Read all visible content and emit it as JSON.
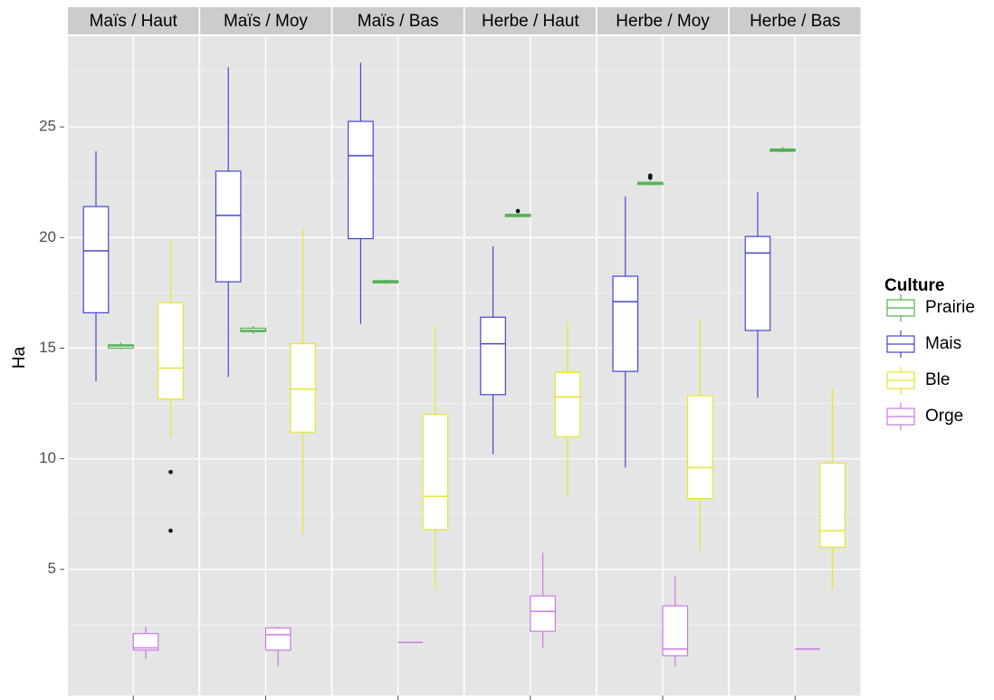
{
  "chart_data": {
    "type": "boxplot",
    "ylabel": "Ha",
    "ylim": [
      -0.7,
      29.1
    ],
    "yticks": [
      5,
      10,
      15,
      20,
      25
    ],
    "yminor": [
      2.5,
      7.5,
      12.5,
      17.5,
      22.5,
      27.5
    ],
    "grid": true,
    "legend_title": "Culture",
    "legend": "right",
    "series": [
      {
        "name": "Prairie",
        "color": "#52b152"
      },
      {
        "name": "Mais",
        "color": "#4646d0"
      },
      {
        "name": "Ble",
        "color": "#e6e62e"
      },
      {
        "name": "Orge",
        "color": "#c97ae0"
      }
    ],
    "facets": [
      {
        "title": "Maïs / Haut",
        "boxes": [
          {
            "min": 14.95,
            "q1": 15.0,
            "median": 15.1,
            "q3": 15.15,
            "max": 15.25,
            "outliers": []
          },
          {
            "min": 13.5,
            "q1": 16.6,
            "median": 19.4,
            "q3": 21.4,
            "max": 23.9,
            "outliers": []
          },
          {
            "min": 11.0,
            "q1": 12.7,
            "median": 14.1,
            "q3": 17.05,
            "max": 19.9,
            "outliers": [
              9.4,
              6.75
            ]
          },
          {
            "min": 0.95,
            "q1": 1.35,
            "median": 1.45,
            "q3": 2.1,
            "max": 2.4,
            "outliers": []
          }
        ]
      },
      {
        "title": "Maïs / Moy",
        "boxes": [
          {
            "min": 15.65,
            "q1": 15.75,
            "median": 15.8,
            "q3": 15.9,
            "max": 16.0,
            "outliers": []
          },
          {
            "min": 13.7,
            "q1": 18.0,
            "median": 21.0,
            "q3": 23.0,
            "max": 27.7,
            "outliers": []
          },
          {
            "min": 6.6,
            "q1": 11.2,
            "median": 13.15,
            "q3": 15.2,
            "max": 20.4,
            "outliers": []
          },
          {
            "min": 0.6,
            "q1": 1.35,
            "median": 2.05,
            "q3": 2.35,
            "max": 2.4,
            "outliers": []
          }
        ]
      },
      {
        "title": "Maïs / Bas",
        "boxes": [
          {
            "min": 17.9,
            "q1": 17.95,
            "median": 18.0,
            "q3": 18.05,
            "max": 18.1,
            "outliers": []
          },
          {
            "min": 16.1,
            "q1": 19.95,
            "median": 23.7,
            "q3": 25.25,
            "max": 27.9,
            "outliers": []
          },
          {
            "min": 4.1,
            "q1": 6.8,
            "median": 8.3,
            "q3": 12.0,
            "max": 16.0,
            "outliers": []
          },
          {
            "min": 1.7,
            "q1": 1.7,
            "median": 1.7,
            "q3": 1.7,
            "max": 1.7,
            "outliers": []
          }
        ]
      },
      {
        "title": "Herbe / Haut",
        "boxes": [
          {
            "min": 20.9,
            "q1": 20.95,
            "median": 21.0,
            "q3": 21.05,
            "max": 21.1,
            "outliers": [
              21.2
            ]
          },
          {
            "min": 10.2,
            "q1": 12.9,
            "median": 15.2,
            "q3": 16.4,
            "max": 19.6,
            "outliers": []
          },
          {
            "min": 8.3,
            "q1": 11.0,
            "median": 12.8,
            "q3": 13.9,
            "max": 16.2,
            "outliers": []
          },
          {
            "min": 1.45,
            "q1": 2.2,
            "median": 3.1,
            "q3": 3.8,
            "max": 5.75,
            "outliers": []
          }
        ]
      },
      {
        "title": "Herbe / Moy",
        "boxes": [
          {
            "min": 22.35,
            "q1": 22.4,
            "median": 22.45,
            "q3": 22.5,
            "max": 22.55,
            "outliers": [
              22.8,
              22.7
            ]
          },
          {
            "min": 9.6,
            "q1": 13.95,
            "median": 17.1,
            "q3": 18.25,
            "max": 21.85,
            "outliers": []
          },
          {
            "min": 5.85,
            "q1": 8.2,
            "median": 9.6,
            "q3": 12.85,
            "max": 16.35,
            "outliers": []
          },
          {
            "min": 0.6,
            "q1": 1.1,
            "median": 1.4,
            "q3": 3.35,
            "max": 4.7,
            "outliers": []
          }
        ]
      },
      {
        "title": "Herbe / Bas",
        "boxes": [
          {
            "min": 23.85,
            "q1": 23.9,
            "median": 23.95,
            "q3": 24.0,
            "max": 24.1,
            "outliers": []
          },
          {
            "min": 12.75,
            "q1": 15.8,
            "median": 19.3,
            "q3": 20.05,
            "max": 22.05,
            "outliers": []
          },
          {
            "min": 4.1,
            "q1": 6.0,
            "median": 6.75,
            "q3": 9.8,
            "max": 13.2,
            "outliers": []
          },
          {
            "min": 1.4,
            "q1": 1.4,
            "median": 1.4,
            "q3": 1.4,
            "max": 1.4,
            "outliers": []
          }
        ]
      }
    ]
  }
}
